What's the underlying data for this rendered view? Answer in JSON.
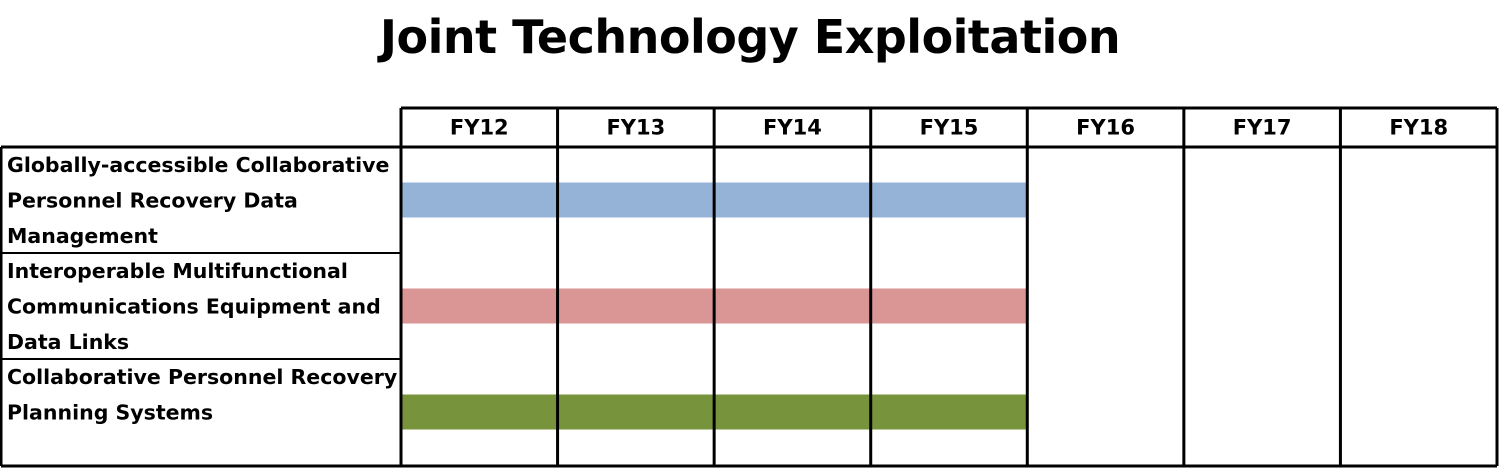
{
  "chart_data": {
    "type": "gantt",
    "title": "Joint Technology Exploitation",
    "periods": [
      "FY12",
      "FY13",
      "FY14",
      "FY15",
      "FY16",
      "FY17",
      "FY18"
    ],
    "tasks": [
      {
        "label_lines": [
          "Globally-accessible Collaborative",
          "Personnel Recovery Data",
          "Management"
        ],
        "start": "FY12",
        "end": "FY15",
        "color": "#95b3d7"
      },
      {
        "label_lines": [
          "Interoperable Multifunctional",
          "Communications Equipment  and",
          "Data Links"
        ],
        "start": "FY12",
        "end": "FY15",
        "color": "#d99694"
      },
      {
        "label_lines": [
          "Collaborative Personnel Recovery",
          "Planning Systems"
        ],
        "start": "FY12",
        "end": "FY15",
        "color": "#77933c"
      }
    ]
  }
}
